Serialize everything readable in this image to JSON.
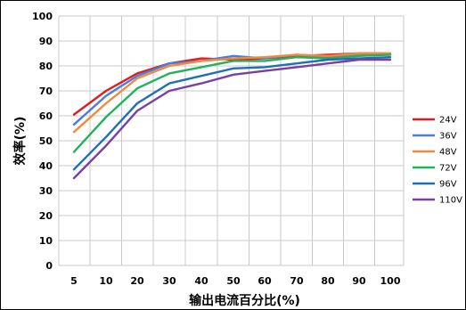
{
  "chart_data": {
    "type": "line",
    "title": "",
    "xlabel": "输出电流百分比(%)",
    "ylabel": "效率(%)",
    "categories": [
      "5",
      "10",
      "20",
      "30",
      "40",
      "50",
      "60",
      "70",
      "80",
      "90",
      "100"
    ],
    "ylim": [
      0,
      100
    ],
    "yticks": [
      0,
      10,
      20,
      30,
      40,
      50,
      60,
      70,
      80,
      90,
      100
    ],
    "grid": true,
    "legend_position": "right",
    "series": [
      {
        "name": "24V",
        "color": "#e41a1c",
        "values": [
          60.5,
          70,
          77,
          81,
          83,
          82.5,
          83,
          84,
          84.5,
          85,
          85
        ]
      },
      {
        "name": "36V",
        "color": "#4a7de0",
        "values": [
          56.5,
          68,
          76,
          81,
          82,
          84,
          83,
          84.5,
          83.5,
          84.5,
          84.5
        ]
      },
      {
        "name": "48V",
        "color": "#f08a3c",
        "values": [
          53.5,
          65,
          75,
          80,
          82,
          83,
          83.5,
          84.5,
          84,
          85,
          85
        ]
      },
      {
        "name": "72V",
        "color": "#21b35a",
        "values": [
          45.5,
          59.5,
          71,
          77,
          79.5,
          82,
          82,
          83.5,
          83,
          84,
          84.5
        ]
      },
      {
        "name": "96V",
        "color": "#1f6fb5",
        "values": [
          38.5,
          51.5,
          65,
          73,
          76,
          79,
          79.5,
          81,
          82.5,
          83,
          83.5
        ]
      },
      {
        "name": "110V",
        "color": "#7a3fa0",
        "values": [
          35,
          48,
          62,
          70,
          73,
          76.5,
          78,
          79.5,
          81,
          82.5,
          82.5
        ]
      }
    ]
  }
}
